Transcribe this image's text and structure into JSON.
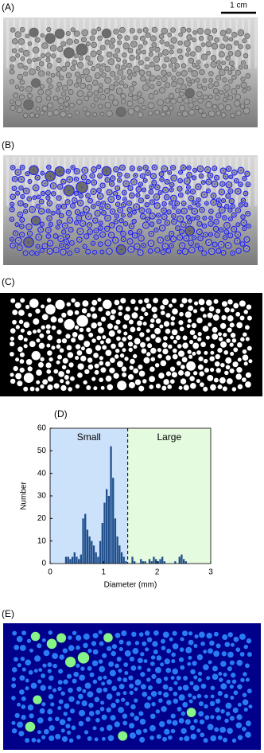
{
  "panels": [
    "(A)",
    "(B)",
    "(C)",
    "(D)",
    "(E)"
  ],
  "scale_bar": "1 cm",
  "chart_data": {
    "type": "histogram",
    "xlabel": "Diameter (mm)",
    "ylabel": "Number",
    "bins": [
      0.24,
      0.28,
      0.32,
      0.36,
      0.4,
      0.44,
      0.48,
      0.52,
      0.56,
      0.6,
      0.64,
      0.68,
      0.72,
      0.76,
      0.8,
      0.84,
      0.88,
      0.92,
      0.96,
      1.0,
      1.04,
      1.08,
      1.12,
      1.16,
      1.2,
      1.24,
      1.28,
      1.32,
      1.36,
      1.4,
      1.44,
      1.48,
      1.52,
      1.56,
      1.6,
      1.64,
      1.68,
      1.72,
      1.76,
      1.8,
      1.84,
      1.88,
      1.92,
      1.96,
      2.0,
      2.04,
      2.08,
      2.12,
      2.16,
      2.2,
      2.24,
      2.28,
      2.32,
      2.36,
      2.4,
      2.44,
      2.48,
      2.52,
      2.56,
      2.6
    ],
    "values": [
      0,
      3,
      3,
      2,
      3,
      5,
      3,
      2,
      4,
      20,
      22,
      15,
      12,
      10,
      8,
      5,
      3,
      10,
      18,
      27,
      33,
      30,
      52,
      38,
      20,
      12,
      8,
      5,
      3,
      1,
      0,
      0,
      3,
      1,
      0,
      0,
      2,
      1,
      1,
      0,
      2,
      1,
      3,
      2,
      1,
      2,
      3,
      1,
      0,
      0,
      0,
      0,
      1,
      0,
      3,
      4,
      2,
      1,
      0
    ],
    "color": "#1f4e8c",
    "xlim": [
      0,
      3
    ],
    "xticks": [
      0,
      1,
      2,
      3
    ],
    "ylim": [
      0,
      60
    ],
    "yticks": [
      0,
      10,
      20,
      30,
      40,
      50,
      60
    ],
    "threshold": 1.45,
    "regions": [
      {
        "name": "Small",
        "color": "#cce2fb"
      },
      {
        "name": "Large",
        "color": "#e4fbe0"
      }
    ]
  }
}
